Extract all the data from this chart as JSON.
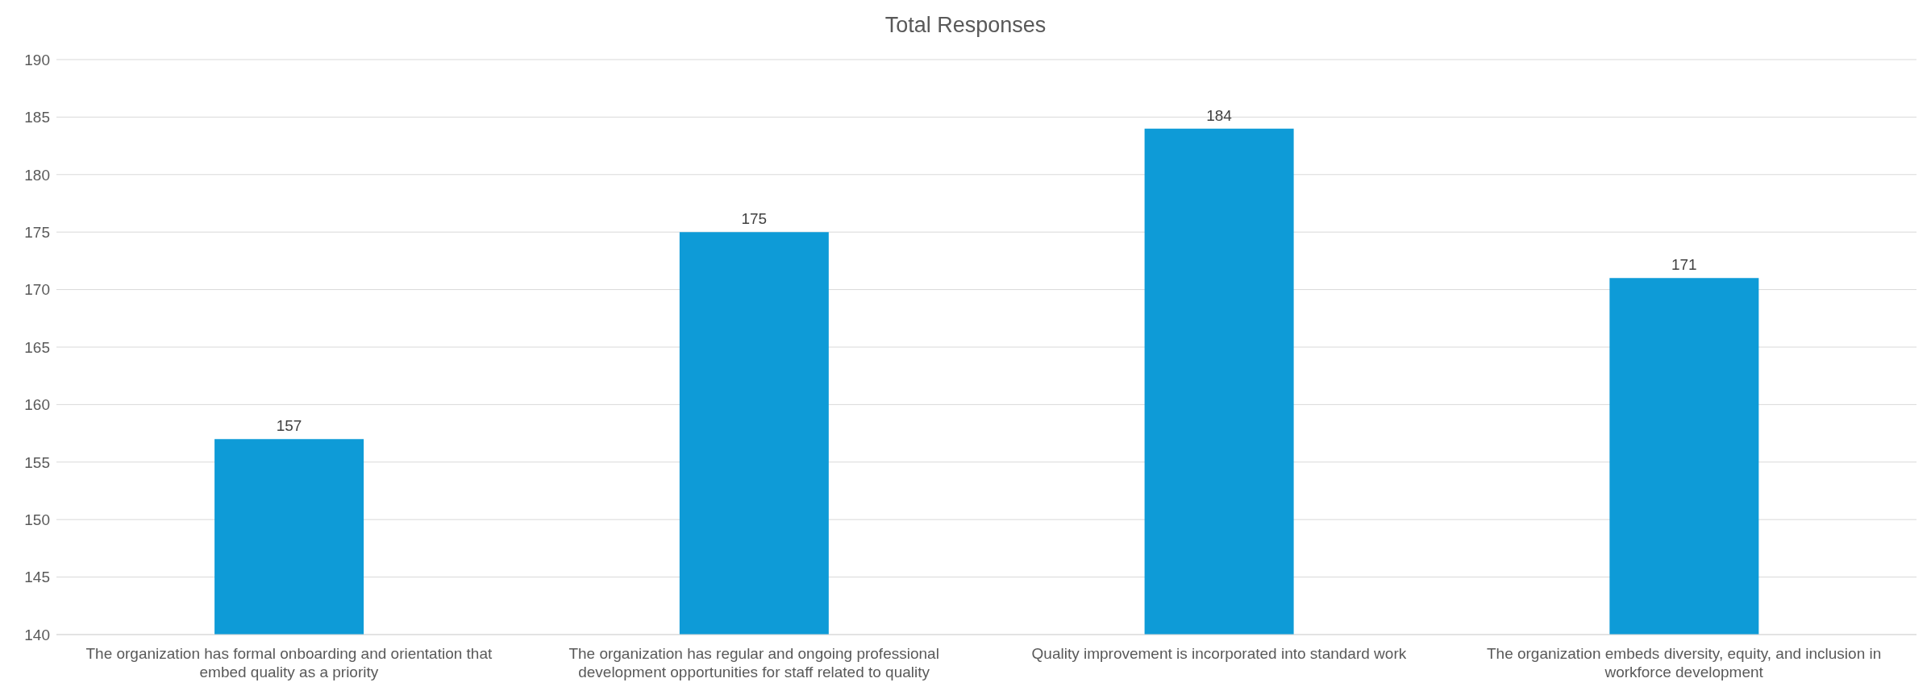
{
  "chart_data": {
    "type": "bar",
    "title": "Total Responses",
    "categories": [
      "The organization has formal onboarding and orientation that embed quality as a priority",
      "The organization has regular and ongoing professional development opportunities for staff related to quality",
      "Quality improvement is incorporated into standard work",
      "The organization embeds diversity, equity, and inclusion in workforce development"
    ],
    "values": [
      157,
      175,
      184,
      171
    ],
    "color": "#0e9bd7",
    "ylim": [
      140,
      190
    ],
    "yticks": [
      140,
      145,
      150,
      155,
      160,
      165,
      170,
      175,
      180,
      185,
      190
    ],
    "grid": "y",
    "data_labels": true
  }
}
